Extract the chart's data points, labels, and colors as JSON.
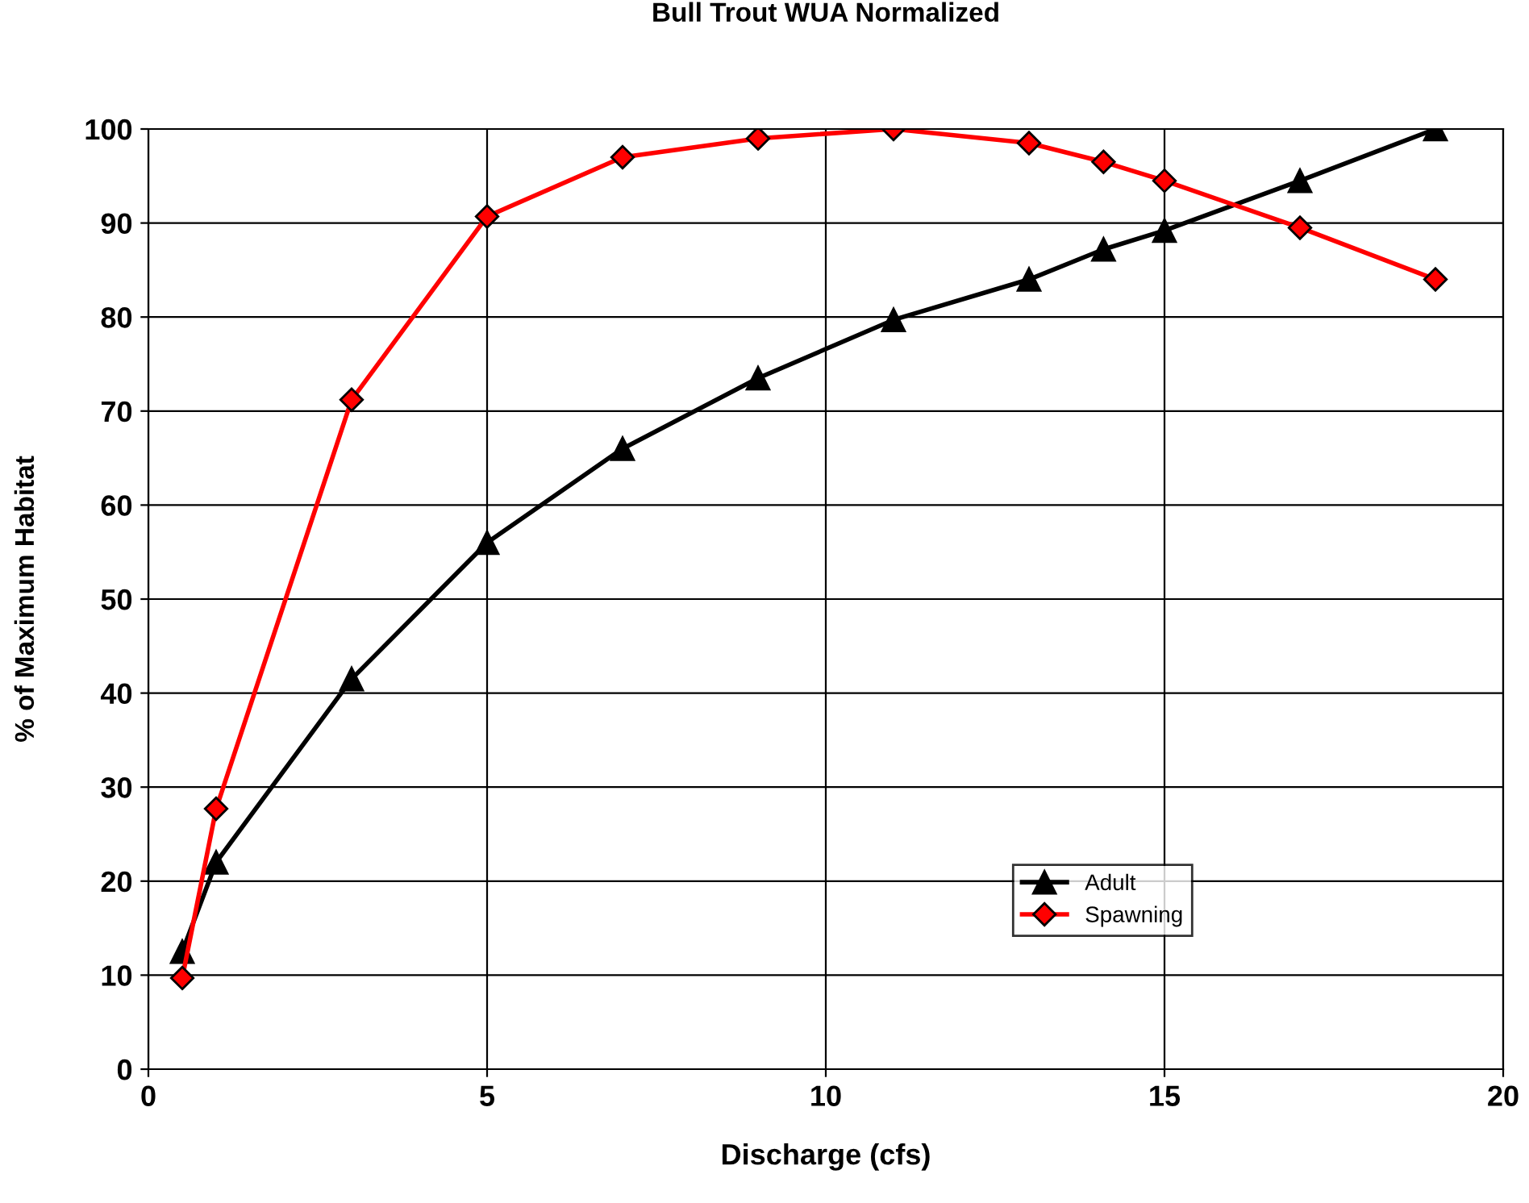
{
  "chart_data": {
    "type": "line",
    "title": "Bull Trout WUA Normalized",
    "xlabel": "Discharge (cfs)",
    "ylabel": "% of Maximum Habitat",
    "x": [
      0.5,
      1,
      3,
      5,
      7,
      9,
      11,
      13,
      14.1,
      15,
      17,
      19
    ],
    "series": [
      {
        "name": "Adult",
        "color": "#000000",
        "marker": "triangle",
        "values": [
          12.5,
          22,
          41.5,
          56,
          66,
          73.5,
          79.7,
          84,
          87.2,
          89.2,
          94.5,
          100
        ]
      },
      {
        "name": "Spawning",
        "color": "#ff0000",
        "marker": "diamond",
        "values": [
          9.7,
          27.7,
          71.2,
          90.7,
          97,
          99,
          100,
          98.5,
          96.5,
          94.5,
          89.5,
          84
        ]
      }
    ],
    "xlim": [
      0,
      20
    ],
    "xticks": [
      0,
      5,
      10,
      15,
      20
    ],
    "ylim": [
      0,
      100
    ],
    "yticks": [
      0,
      10,
      20,
      30,
      40,
      50,
      60,
      70,
      80,
      90,
      100
    ],
    "grid": true,
    "legend": "bottom right",
    "line_style": "solid"
  }
}
